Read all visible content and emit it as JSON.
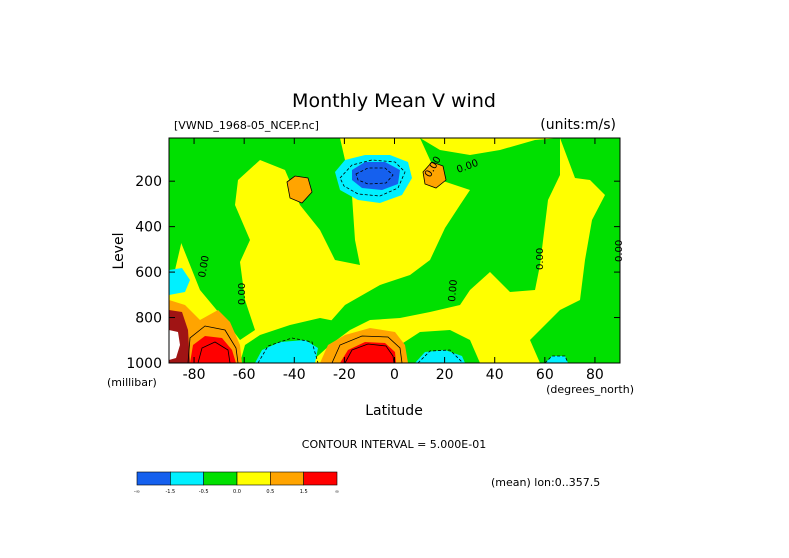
{
  "chart_data": {
    "type": "heatmap",
    "title": "Monthly Mean V wind",
    "file_label": "[VWND_1968-05_NCEP.nc]",
    "units_label": "(units:m/s)",
    "xlabel": "Latitude",
    "x_unit_label": "(degrees_north)",
    "ylabel": "Level",
    "y_unit_label": "(millibar)",
    "x_ticks": [
      "-80",
      "-60",
      "-40",
      "-20",
      "0",
      "20",
      "40",
      "60",
      "80"
    ],
    "x_tick_values": [
      -80,
      -60,
      -40,
      -20,
      0,
      20,
      40,
      60,
      80
    ],
    "y_ticks": [
      "200",
      "400",
      "600",
      "800",
      "1000"
    ],
    "y_tick_values": [
      200,
      400,
      600,
      800,
      1000
    ],
    "xlim": [
      -90,
      90
    ],
    "ylim": [
      1000,
      10
    ],
    "contour_interval_text": "CONTOUR INTERVAL = 5.000E-01",
    "mean_note": "(mean) lon:0..357.5",
    "contour_labels": [
      "0.00",
      "0.00",
      "0.00",
      "0.00",
      "0.00",
      "0.00",
      "0.00"
    ],
    "colorbar": {
      "bins": [
        {
          "color": "#1560ee",
          "label": "-∞"
        },
        {
          "color": "#00f0ff",
          "label": "-1.5"
        },
        {
          "color": "#00e000",
          "label": "-0.5"
        },
        {
          "color": "#ffff00",
          "label": "0.0"
        },
        {
          "color": "#ffa400",
          "label": "0.5"
        },
        {
          "color": "#ff0000",
          "label": "1.5"
        }
      ],
      "end_label": "∞"
    },
    "colors": {
      "negative_strong": "#1560ee",
      "negative": "#00f0ff",
      "negative_weak": "#00e000",
      "near_zero": "#ffff00",
      "positive": "#ffa400",
      "positive_strong": "#ff0000",
      "positive_extreme": "#a01414"
    }
  }
}
